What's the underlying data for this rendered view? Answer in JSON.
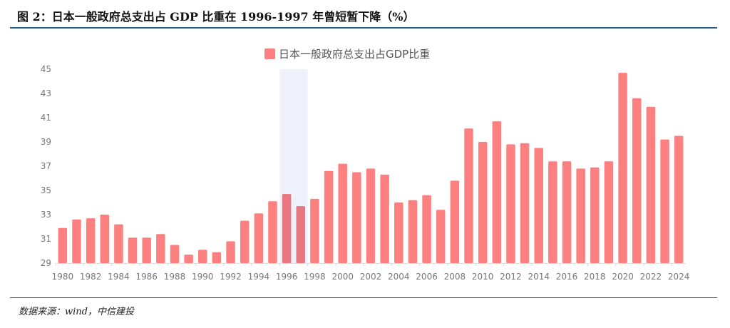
{
  "title": "图 2：日本一般政府总支出占 GDP 比重在 1996-1997 年曾短暂下降（%）",
  "source": "数据来源：wind，中信建投",
  "chart_data": {
    "type": "bar",
    "title": "",
    "legend": [
      "日本一般政府总支出占GDP比重"
    ],
    "legend_placement": "top",
    "xlabel": "",
    "ylabel": "",
    "ylim": [
      29,
      45
    ],
    "yticks": [
      29,
      31,
      33,
      35,
      37,
      39,
      41,
      43,
      45
    ],
    "grid": false,
    "highlight_range": [
      "1996",
      "1997"
    ],
    "colors": {
      "bar": "#fc8080",
      "bar_highlighted": "#e8777f",
      "highlight_band": "#eef1fa"
    },
    "categories": [
      "1980",
      "1981",
      "1982",
      "1983",
      "1984",
      "1985",
      "1986",
      "1987",
      "1988",
      "1989",
      "1990",
      "1991",
      "1992",
      "1993",
      "1994",
      "1995",
      "1996",
      "1997",
      "1998",
      "1999",
      "2000",
      "2001",
      "2002",
      "2003",
      "2004",
      "2005",
      "2006",
      "2007",
      "2008",
      "2009",
      "2010",
      "2011",
      "2012",
      "2013",
      "2014",
      "2015",
      "2016",
      "2017",
      "2018",
      "2019",
      "2020",
      "2021",
      "2022",
      "2023",
      "2024"
    ],
    "xtick_labels": [
      "1980",
      "1982",
      "1984",
      "1986",
      "1988",
      "1990",
      "1992",
      "1994",
      "1996",
      "1998",
      "2000",
      "2002",
      "2004",
      "2006",
      "2008",
      "2010",
      "2012",
      "2014",
      "2016",
      "2018",
      "2020",
      "2022",
      "2024"
    ],
    "series": [
      {
        "name": "日本一般政府总支出占GDP比重",
        "values": [
          31.9,
          32.6,
          32.7,
          33.0,
          32.2,
          31.1,
          31.1,
          31.4,
          30.5,
          29.7,
          30.1,
          29.9,
          30.8,
          32.5,
          33.1,
          34.1,
          34.7,
          33.7,
          34.3,
          36.6,
          37.2,
          36.5,
          36.8,
          36.3,
          34.0,
          34.2,
          34.6,
          33.4,
          35.8,
          40.1,
          39.0,
          40.7,
          38.8,
          38.9,
          38.5,
          37.4,
          37.4,
          36.8,
          36.9,
          37.4,
          44.7,
          42.6,
          41.9,
          39.2,
          39.5
        ]
      }
    ]
  }
}
